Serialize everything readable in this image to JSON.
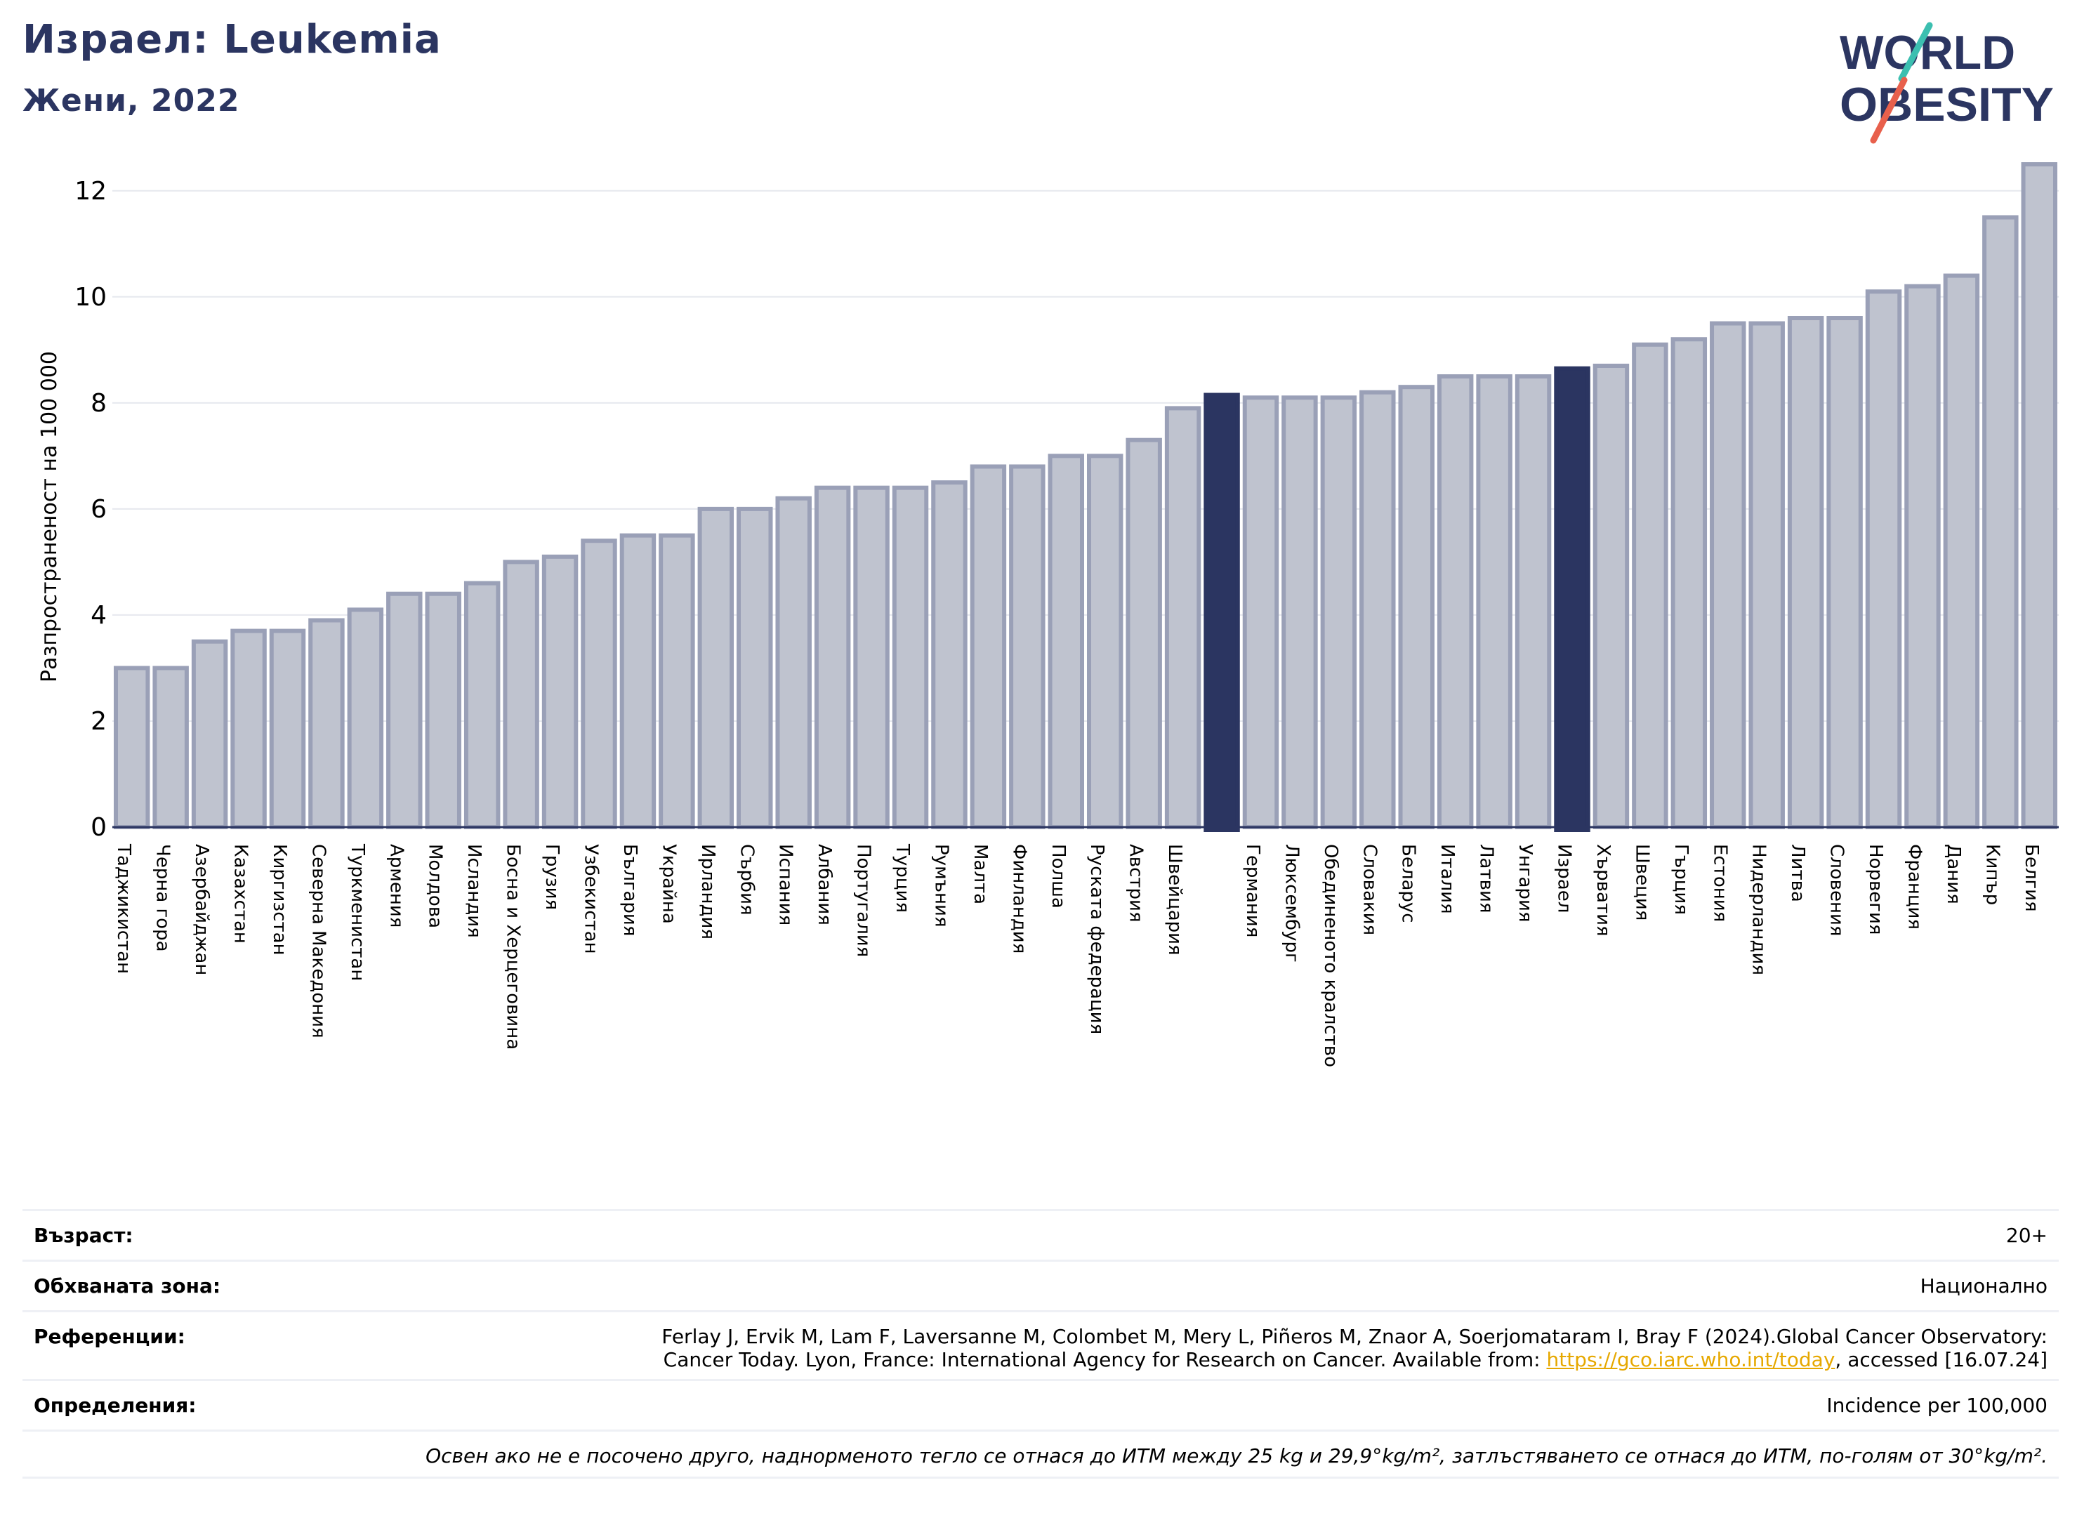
{
  "header": {
    "title": "Израел: Leukemia",
    "subtitle": "Жени, 2022"
  },
  "logo": {
    "line1": "WORLD",
    "line2": "OBESITY",
    "colors": {
      "navy": "#2b3561",
      "teal": "#3cbfb0",
      "coral": "#e8604c"
    }
  },
  "colors": {
    "bar_fill": "#bfc3cf",
    "bar_stroke": "#9aa0b7",
    "highlight": "#2b3561",
    "grid": "#e6e8ee"
  },
  "chart_data": {
    "type": "bar",
    "ylabel": "Разпространеност  на 100 000",
    "xlabel": "",
    "ylim": [
      0,
      13
    ],
    "yticks": [
      0,
      2,
      4,
      6,
      8,
      10,
      12
    ],
    "grid": true,
    "categories": [
      "Таджикистан",
      "Черна гора",
      "Азербайджан",
      "Казахстан",
      "Киргизстан",
      "Северна Македония",
      "Туркменистан",
      "Армения",
      "Молдова",
      "Исландия",
      "Босна и Херцеговина",
      "Грузия",
      "Узбекистан",
      "България",
      "Украйна",
      "Ирландия",
      "Сърбия",
      "Испания",
      "Албания",
      "Португалия",
      "Турция",
      "Румъния",
      "Малта",
      "Финландия",
      "Полша",
      "Руската федерация",
      "Австрия",
      "Швейцария",
      "",
      "Германия",
      "Люксембург",
      "Обединеното кралство",
      "Словакия",
      "Беларус",
      "Италия",
      "Латвия",
      "Унгария",
      "Израел",
      "Хърватия",
      "Швеция",
      "Гърция",
      "Естония",
      "Нидерландия",
      "Литва",
      "Словения",
      "Норвегия",
      "Франция",
      "Дания",
      "Кипър",
      "Белгия"
    ],
    "values": [
      3.0,
      3.0,
      3.5,
      3.7,
      3.7,
      3.9,
      4.1,
      4.4,
      4.4,
      4.6,
      5.0,
      5.1,
      5.4,
      5.5,
      5.5,
      6.0,
      6.0,
      6.2,
      6.4,
      6.4,
      6.4,
      6.5,
      6.8,
      6.8,
      7.0,
      7.0,
      7.3,
      7.9,
      8.15,
      8.1,
      8.1,
      8.1,
      8.2,
      8.3,
      8.5,
      8.5,
      8.5,
      8.65,
      8.7,
      9.1,
      9.2,
      9.5,
      9.5,
      9.6,
      9.6,
      10.1,
      10.2,
      10.4,
      11.5,
      12.5
    ],
    "highlighted": [
      "",
      "Израел"
    ]
  },
  "info": {
    "age_label": "Възраст:",
    "age_value": "20+",
    "area_label": "Обхваната зона:",
    "area_value": "Национално",
    "ref_label": "Референции:",
    "ref_line1": "Ferlay J, Ervik M, Lam F, Laversanne M, Colombet M, Mery L, Piñeros M, Znaor A, Soerjomataram I, Bray F (2024).Global Cancer Observatory:",
    "ref_line2_pre": "Cancer Today. Lyon, France: International Agency for Research on Cancer. Available from: ",
    "ref_link": "https://gco.iarc.who.int/today",
    "ref_line2_post": ", accessed [16.07.24]",
    "def_label": "Определения:",
    "def_value": "Incidence per 100,000",
    "note": "Освен ако не е посочено друго, наднорменото тегло се отнася до ИТМ между 25 kg и 29,9°kg/m², затлъстяването се отнася до ИТМ, по-голям от 30°kg/m²."
  }
}
